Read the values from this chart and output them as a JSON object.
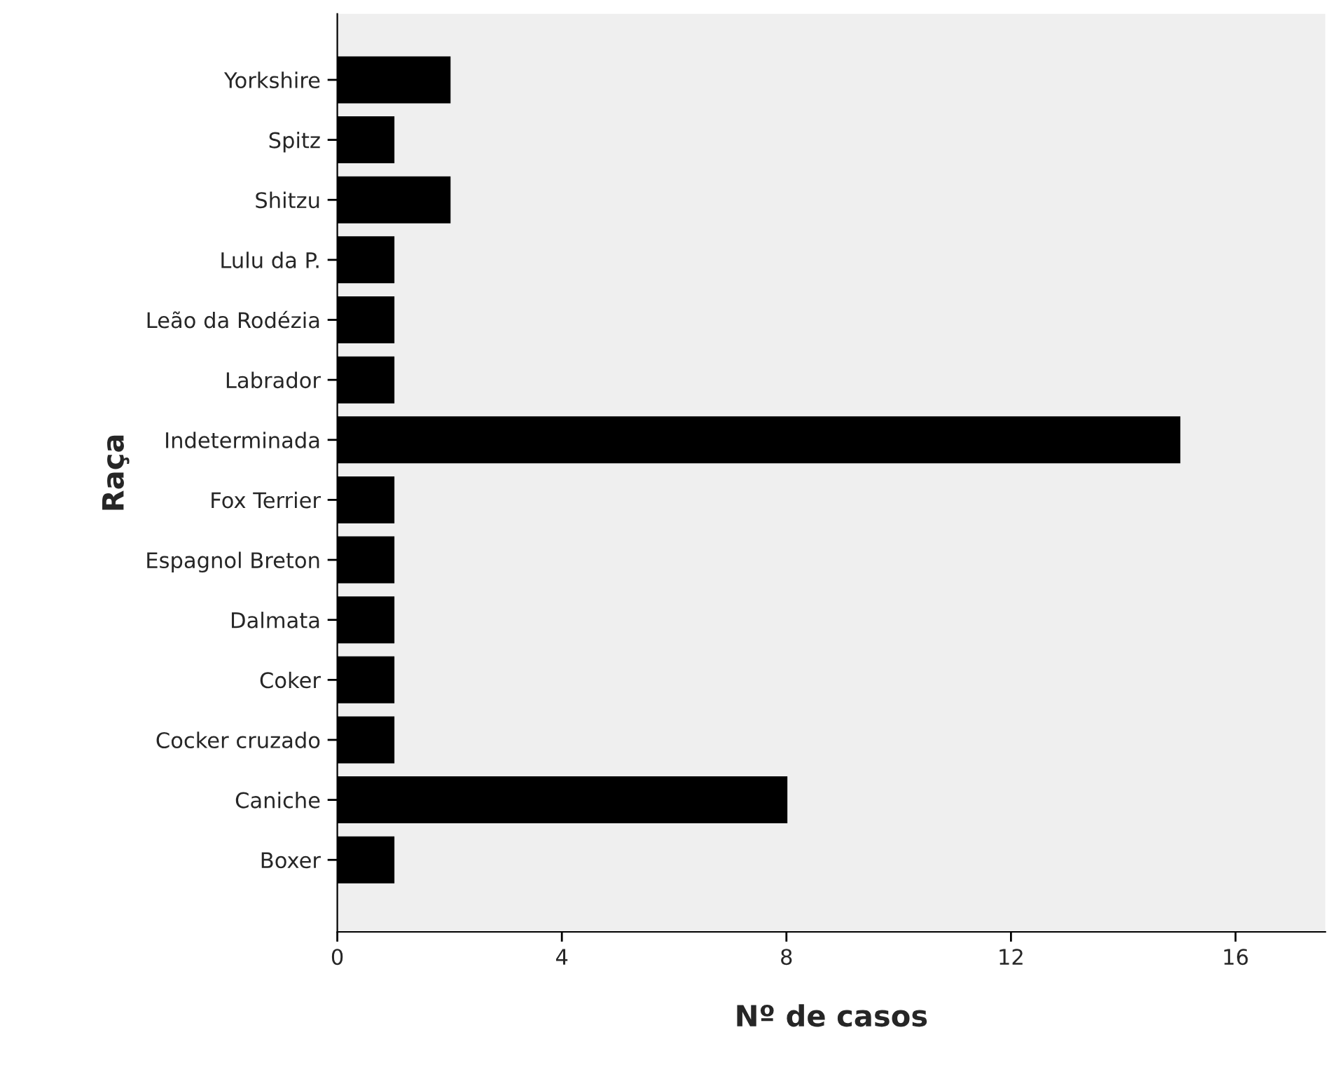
{
  "chart_data": {
    "type": "bar",
    "orientation": "horizontal",
    "xlabel": "Nº de casos",
    "ylabel": "Raça",
    "categories": [
      "Yorkshire",
      "Spitz",
      "Shitzu",
      "Lulu da P.",
      "Leão da Rodézia",
      "Labrador",
      "Indeterminada",
      "Fox Terrier",
      "Espagnol Breton",
      "Dalmata",
      "Coker",
      "Cocker cruzado",
      "Caniche",
      "Boxer"
    ],
    "values": [
      2,
      1,
      2,
      1,
      1,
      1,
      15,
      1,
      1,
      1,
      1,
      1,
      8,
      1
    ],
    "color": "#000000",
    "xlim": [
      0,
      17.6
    ],
    "xticks": [
      0,
      4,
      8,
      12,
      16
    ],
    "grid": false,
    "legend": false
  }
}
